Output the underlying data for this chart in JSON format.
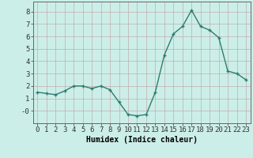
{
  "x": [
    0,
    1,
    2,
    3,
    4,
    5,
    6,
    7,
    8,
    9,
    10,
    11,
    12,
    13,
    14,
    15,
    16,
    17,
    18,
    19,
    20,
    21,
    22,
    23
  ],
  "y": [
    1.5,
    1.4,
    1.3,
    1.6,
    2.0,
    2.0,
    1.8,
    2.0,
    1.7,
    0.7,
    -0.3,
    -0.4,
    -0.3,
    1.5,
    4.5,
    6.2,
    6.8,
    8.1,
    6.8,
    6.5,
    5.9,
    3.2,
    3.0,
    2.5
  ],
  "line_color": "#2e7d6e",
  "bg_color": "#cceee8",
  "grid_color": "#c0a8a8",
  "xlabel": "Humidex (Indice chaleur)",
  "xlabel_fontsize": 7,
  "tick_fontsize": 6.5,
  "xlim": [
    -0.5,
    23.5
  ],
  "ylim": [
    -1.0,
    8.8
  ],
  "yticks": [
    0,
    1,
    2,
    3,
    4,
    5,
    6,
    7,
    8
  ],
  "ytick_labels": [
    "-0",
    "1",
    "2",
    "3",
    "4",
    "5",
    "6",
    "7",
    "8"
  ],
  "xticks": [
    0,
    1,
    2,
    3,
    4,
    5,
    6,
    7,
    8,
    9,
    10,
    11,
    12,
    13,
    14,
    15,
    16,
    17,
    18,
    19,
    20,
    21,
    22,
    23
  ]
}
